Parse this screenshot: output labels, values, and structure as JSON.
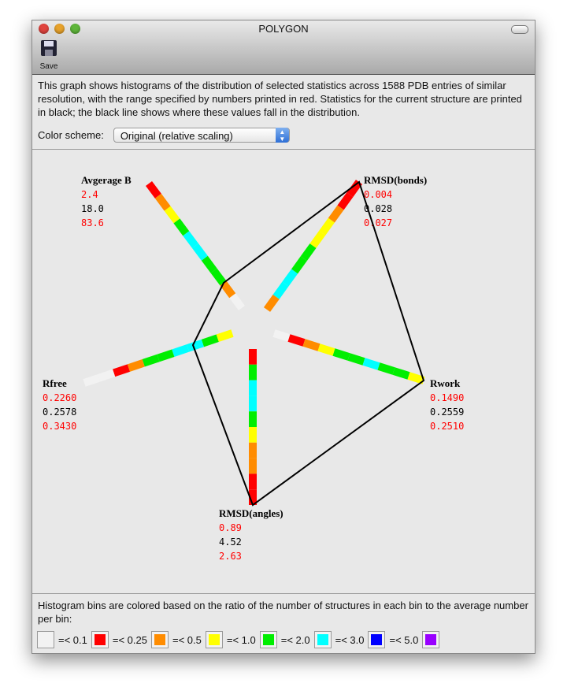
{
  "window": {
    "title": "POLYGON"
  },
  "toolbar": {
    "save_label": "Save"
  },
  "description": "This graph shows histograms of the distribution of selected statistics across 1588 PDB entries of similar resolution, with the range specified by numbers printed in red.  Statistics for the current structure are printed in black; the black line shows where these values fall in the distribution.",
  "color_scheme": {
    "label": "Color scheme:",
    "selected": "Original (relative scaling)"
  },
  "colors": {
    "white": "#f2f2f2",
    "red": "#ff0000",
    "orange": "#ff8c00",
    "yellow": "#ffff00",
    "green": "#00ee00",
    "cyan": "#00ffff",
    "blue": "#0000ff",
    "purple": "#9900ff",
    "range": "#ff0000",
    "current": "#000000"
  },
  "axes": [
    {
      "name": "Avgerage B",
      "min": "2.4",
      "current": "18.0",
      "max": "83.6",
      "bins": [
        "white",
        "orange",
        "green",
        "green",
        "cyan",
        "cyan",
        "green",
        "yellow",
        "orange",
        "red"
      ]
    },
    {
      "name": "RMSD(bonds)",
      "min": "0.004",
      "current": "0.028",
      "max": "0.027",
      "bins": [
        "orange",
        "cyan",
        "cyan",
        "green",
        "green",
        "yellow",
        "yellow",
        "orange",
        "red",
        "red"
      ]
    },
    {
      "name": "Rwork",
      "min": "0.1490",
      "current": "0.2559",
      "max": "0.2510",
      "bins": [
        "white",
        "red",
        "orange",
        "yellow",
        "green",
        "green",
        "cyan",
        "green",
        "green",
        "yellow"
      ]
    },
    {
      "name": "RMSD(angles)",
      "min": "0.89",
      "current": "4.52",
      "max": "2.63",
      "bins": [
        "red",
        "green",
        "cyan",
        "cyan",
        "green",
        "yellow",
        "orange",
        "orange",
        "red",
        "red"
      ]
    },
    {
      "name": "Rfree",
      "min": "0.2260",
      "current": "0.2578",
      "max": "0.3430",
      "bins": [
        "yellow",
        "green",
        "cyan",
        "cyan",
        "green",
        "green",
        "orange",
        "red",
        "white",
        "white"
      ]
    }
  ],
  "legend": {
    "text": "Histogram bins are colored based on the ratio of the number of structures in each bin to the average number per bin:",
    "items": [
      {
        "color": "white",
        "label": "=< 0.1"
      },
      {
        "color": "red",
        "label": "=< 0.25"
      },
      {
        "color": "orange",
        "label": "=< 0.5"
      },
      {
        "color": "yellow",
        "label": "=< 1.0"
      },
      {
        "color": "green",
        "label": "=< 2.0"
      },
      {
        "color": "cyan",
        "label": "=< 3.0"
      },
      {
        "color": "blue",
        "label": "=< 5.0"
      },
      {
        "color": "purple",
        "label": ""
      }
    ]
  }
}
